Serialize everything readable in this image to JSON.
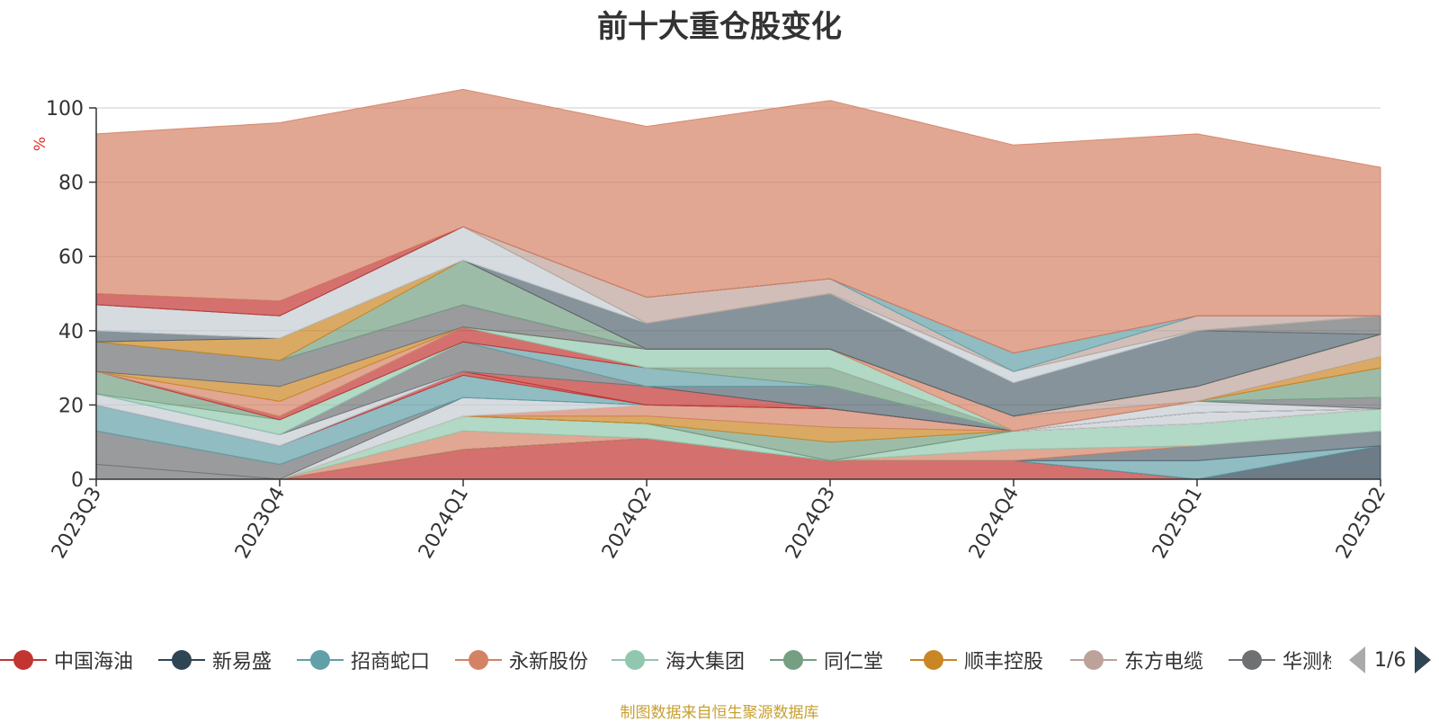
{
  "chart_data": {
    "type": "area",
    "title": "前十大重仓股变化",
    "xlabel": "",
    "ylabel": "%",
    "ylim": [
      0,
      100
    ],
    "yticks": [
      0,
      20,
      40,
      60,
      80,
      100
    ],
    "grid": true,
    "legend_position": "bottom",
    "categories": [
      "2023Q3",
      "2023Q4",
      "2024Q1",
      "2024Q2",
      "2024Q3",
      "2024Q4",
      "2025Q1",
      "2025Q2"
    ],
    "series": [
      {
        "name": "中国海油",
        "color": "#c23531"
      },
      {
        "name": "新易盛",
        "color": "#2f4554"
      },
      {
        "name": "招商蛇口",
        "color": "#61a0a8"
      },
      {
        "name": "永新股份",
        "color": "#d48265"
      },
      {
        "name": "海大集团",
        "color": "#91c7ae"
      },
      {
        "name": "同仁堂",
        "color": "#749f83"
      },
      {
        "name": "顺丰控股",
        "color": "#ca8622"
      },
      {
        "name": "东方电缆",
        "color": "#bda29a"
      },
      {
        "name": "华测检测",
        "color": "#6e7074"
      }
    ],
    "stacked_layers": [
      {
        "color": "#c23531",
        "values": [
          0,
          0,
          8,
          11,
          5,
          5,
          0,
          0
        ]
      },
      {
        "color": "#2f4554",
        "values": [
          0,
          0,
          0,
          0,
          0,
          0,
          0,
          9
        ]
      },
      {
        "color": "#61a0a8",
        "values": [
          0,
          0,
          0,
          0,
          0,
          0,
          5,
          0
        ]
      },
      {
        "color": "#546570",
        "values": [
          0,
          0,
          0,
          0,
          0,
          0,
          4,
          4
        ]
      },
      {
        "color": "#d48265",
        "values": [
          0,
          0,
          5,
          0,
          0,
          3,
          0,
          0
        ]
      },
      {
        "color": "#91c7ae",
        "values": [
          0,
          0,
          4,
          4,
          0,
          5,
          6,
          6
        ]
      },
      {
        "color": "#6e7074",
        "values": [
          4,
          0,
          0,
          0,
          0,
          0,
          0,
          0
        ]
      },
      {
        "color": "#749f83",
        "values": [
          0,
          0,
          0,
          0,
          5,
          0,
          0,
          0
        ]
      },
      {
        "color": "#ca8622",
        "values": [
          0,
          0,
          0,
          2,
          4,
          0,
          0,
          0
        ]
      },
      {
        "color": "#d48265",
        "values": [
          0,
          0,
          0,
          3,
          5,
          0,
          0,
          0
        ]
      },
      {
        "color": "#c4ccd3",
        "values": [
          0,
          0,
          5,
          0,
          0,
          0,
          3,
          0
        ]
      },
      {
        "color": "#6e7074",
        "values": [
          9,
          4,
          0,
          0,
          0,
          0,
          0,
          0
        ]
      },
      {
        "color": "#61a0a8",
        "values": [
          7,
          5,
          6,
          0,
          0,
          0,
          0,
          0
        ]
      },
      {
        "color": "#c23531",
        "values": [
          0,
          0,
          1,
          0,
          0,
          0,
          0,
          0
        ]
      },
      {
        "color": "#c23531",
        "values": [
          0,
          0,
          0,
          5,
          0,
          0,
          0,
          0
        ]
      },
      {
        "color": "#546570",
        "values": [
          0,
          0,
          0,
          0,
          6,
          0,
          0,
          0
        ]
      },
      {
        "color": "#c4ccd3",
        "values": [
          3,
          3,
          0,
          0,
          0,
          0,
          3,
          0
        ]
      },
      {
        "color": "#6e7074",
        "values": [
          0,
          0,
          8,
          0,
          0,
          0,
          0,
          3
        ]
      },
      {
        "color": "#61a0a8",
        "values": [
          0,
          0,
          0,
          5,
          0,
          0,
          0,
          0
        ]
      },
      {
        "color": "#91c7ae",
        "values": [
          0,
          4,
          0,
          0,
          0,
          0,
          0,
          0
        ]
      },
      {
        "color": "#749f83",
        "values": [
          6,
          0,
          0,
          0,
          5,
          0,
          0,
          8
        ]
      },
      {
        "color": "#c23531",
        "values": [
          0,
          1,
          4,
          0,
          0,
          0,
          0,
          0
        ]
      },
      {
        "color": "#91c7ae",
        "values": [
          0,
          0,
          0,
          5,
          5,
          0,
          0,
          0
        ]
      },
      {
        "color": "#d48265",
        "values": [
          0,
          4,
          0,
          0,
          0,
          4,
          0,
          0
        ]
      },
      {
        "color": "#ca8622",
        "values": [
          0,
          4,
          0,
          0,
          0,
          0,
          0,
          3
        ]
      },
      {
        "color": "#bda29a",
        "values": [
          0,
          0,
          0,
          0,
          0,
          0,
          4,
          6
        ]
      },
      {
        "color": "#6e7074",
        "values": [
          8,
          7,
          6,
          0,
          0,
          0,
          0,
          0
        ]
      },
      {
        "color": "#749f83",
        "values": [
          0,
          0,
          12,
          0,
          0,
          0,
          0,
          0
        ]
      },
      {
        "color": "#ca8622",
        "values": [
          0,
          6,
          0,
          0,
          0,
          0,
          0,
          0
        ]
      },
      {
        "color": "#546570",
        "values": [
          3,
          0,
          0,
          7,
          15,
          9,
          15,
          0
        ]
      },
      {
        "color": "#6e7074",
        "values": [
          0,
          0,
          0,
          0,
          0,
          0,
          0,
          5
        ]
      },
      {
        "color": "#c4ccd3",
        "values": [
          7,
          6,
          9,
          0,
          0,
          3,
          0,
          0
        ]
      },
      {
        "color": "#91c7ae",
        "values": [
          0,
          0,
          0,
          0,
          0,
          0,
          0,
          0
        ]
      },
      {
        "color": "#bda29a",
        "values": [
          0,
          0,
          0,
          7,
          4,
          0,
          4,
          0
        ]
      },
      {
        "color": "#61a0a8",
        "values": [
          0,
          0,
          0,
          0,
          0,
          5,
          0,
          0
        ]
      },
      {
        "color": "#c23531",
        "values": [
          3,
          4,
          0,
          0,
          0,
          0,
          0,
          0
        ]
      },
      {
        "color": "#d48265",
        "values": [
          43,
          48,
          37,
          46,
          48,
          56,
          49,
          40
        ]
      }
    ]
  },
  "legend": {
    "items": [
      {
        "label": "中国海油",
        "color": "#c23531"
      },
      {
        "label": "新易盛",
        "color": "#2f4554"
      },
      {
        "label": "招商蛇口",
        "color": "#61a0a8"
      },
      {
        "label": "永新股份",
        "color": "#d48265"
      },
      {
        "label": "海大集团",
        "color": "#91c7ae"
      },
      {
        "label": "同仁堂",
        "color": "#749f83"
      },
      {
        "label": "顺丰控股",
        "color": "#ca8622"
      },
      {
        "label": "东方电缆",
        "color": "#bda29a"
      },
      {
        "label": "华测检测",
        "color": "#6e7074"
      }
    ],
    "page_indicator": "1/6"
  },
  "footer": {
    "source_note": "制图数据来自恒生聚源数据库"
  }
}
